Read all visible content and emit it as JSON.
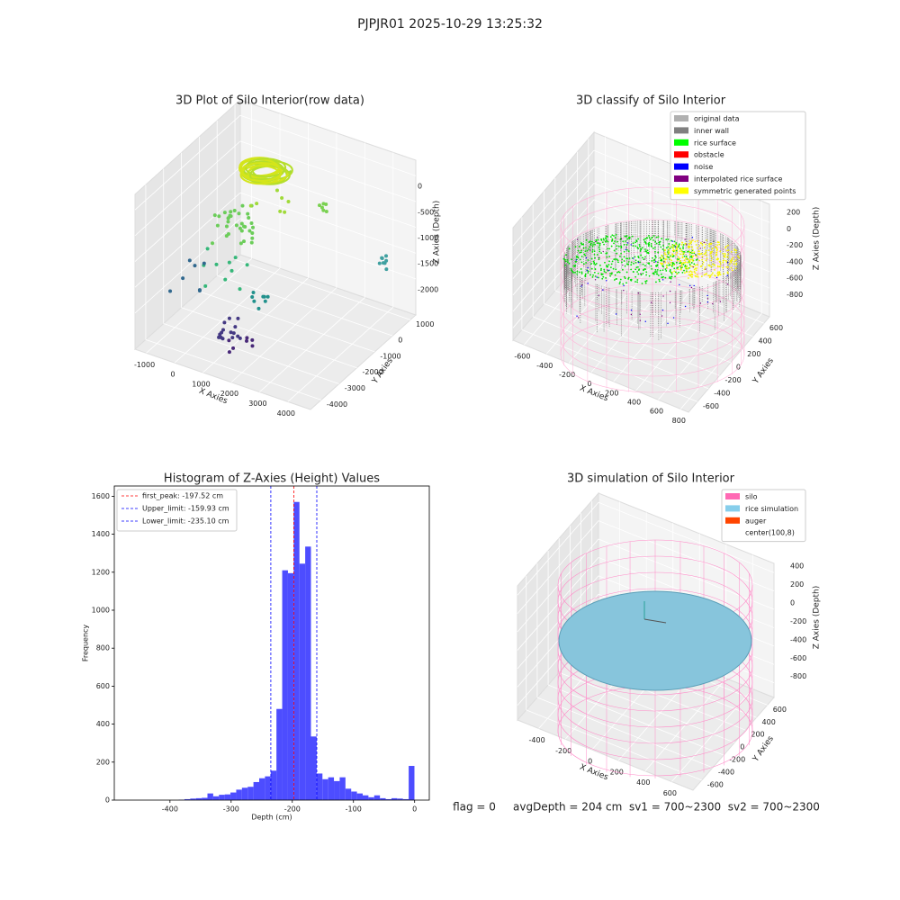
{
  "title": "PJPJR01 2025-10-29 13:25:32",
  "chart_data": [
    {
      "type": "scatter3d",
      "title": "3D Plot of Silo Interior(row data)",
      "xlabel": "X Axies",
      "ylabel": "Y Axies",
      "zlabel": "Z Axies (Depth)",
      "xlim": [
        -1400,
        4800
      ],
      "xticks": [
        -1000,
        0,
        1000,
        2000,
        3000,
        4000
      ],
      "ylim": [
        -4600,
        1300
      ],
      "yticks": [
        -4000,
        -3000,
        -2000,
        -1000,
        0,
        1000
      ],
      "zlim": [
        -2700,
        300
      ],
      "zticks": [
        -2000,
        -1500,
        -1000,
        -500,
        0
      ],
      "grid": true
    },
    {
      "type": "scatter3d",
      "title": "3D classify of Silo Interior",
      "xlabel": "X Axies",
      "ylabel": "Y Axies",
      "zlabel": "Z Axies (Depth)",
      "xlim": [
        -700,
        870
      ],
      "xticks": [
        -600,
        -400,
        -200,
        0,
        200,
        400,
        600,
        800
      ],
      "ylim": [
        -760,
        700
      ],
      "yticks": [
        -600,
        -400,
        -200,
        0,
        200,
        400,
        600
      ],
      "zlim": [
        -950,
        420
      ],
      "zticks": [
        -800,
        -600,
        -400,
        -200,
        0,
        200
      ],
      "grid": true,
      "legend": {
        "loc": "upper right",
        "items": [
          {
            "name": "original data",
            "color": "#b0b0b0"
          },
          {
            "name": "inner wall",
            "color": "#808080"
          },
          {
            "name": "rice surface",
            "color": "#00ff00"
          },
          {
            "name": "obstacle",
            "color": "#ff0000"
          },
          {
            "name": "noise",
            "color": "#0000ff"
          },
          {
            "name": "interpolated rice surface",
            "color": "#800080"
          },
          {
            "name": "symmetric generated points",
            "color": "#ffff00"
          }
        ]
      }
    },
    {
      "type": "histogram",
      "title": "Histogram of Z-Axies (Height) Values",
      "xlabel": "Depth (cm)",
      "ylabel": "Frequency",
      "color": "#4d4dff",
      "bins": [
        -385.7,
        -376.3,
        -366.9,
        -357.5,
        -348.1,
        -338.7,
        -329.3,
        -319.9,
        -310.5,
        -301.1,
        -291.7,
        -282.3,
        -272.9,
        -263.5,
        -254.1,
        -244.7,
        -235.3,
        -225.9,
        -216.5,
        -207.1,
        -197.7,
        -188.3,
        -178.9,
        -169.5,
        -160.1,
        -150.7,
        -141.3,
        -131.9,
        -122.5,
        -113.1,
        -103.7,
        -94.3,
        -84.9,
        -75.5,
        -66.1,
        -56.7,
        -47.3,
        -37.9,
        -28.5,
        -19.1,
        -9.7,
        -0.3
      ],
      "counts": [
        2,
        5,
        8,
        10,
        12,
        35,
        20,
        28,
        30,
        40,
        55,
        65,
        70,
        95,
        115,
        125,
        155,
        480,
        1210,
        1195,
        1570,
        1245,
        1335,
        335,
        140,
        110,
        120,
        100,
        120,
        60,
        45,
        35,
        25,
        15,
        25,
        10,
        5,
        10,
        8,
        5,
        180
      ],
      "xlim": [
        -491,
        24
      ],
      "xticks": [
        -400,
        -300,
        -200,
        -100,
        0
      ],
      "ylim": [
        0,
        1654
      ],
      "yticks": [
        0,
        200,
        400,
        600,
        800,
        1000,
        1200,
        1400,
        1600
      ],
      "lines": [
        {
          "name": "first_peak: -197.52 cm",
          "value": -197.52,
          "color": "#ff0000"
        },
        {
          "name": "Upper_limit: -159.93 cm",
          "value": -159.93,
          "color": "#0000ff"
        },
        {
          "name": "Lower_limit: -235.10 cm",
          "value": -235.1,
          "color": "#0000ff"
        }
      ],
      "legend": {
        "loc": "upper left"
      }
    },
    {
      "type": "surface3d",
      "title": "3D simulation of Silo Interior",
      "xlabel": "X Axies",
      "ylabel": "Y Axies",
      "zlabel": "Z Axies (Depth)",
      "xlim": [
        -560,
        760
      ],
      "xticks": [
        -400,
        -200,
        0,
        200,
        400,
        600
      ],
      "ylim": [
        -760,
        720
      ],
      "yticks": [
        -600,
        -400,
        -200,
        0,
        200,
        400,
        600
      ],
      "zlim": [
        -960,
        500
      ],
      "zticks": [
        -800,
        -600,
        -400,
        -200,
        0,
        200,
        400
      ],
      "grid": true,
      "legend": {
        "loc": "upper right",
        "items": [
          {
            "name": "silo",
            "color": "#ff69b4"
          },
          {
            "name": "rice simulation",
            "color": "#87ceeb"
          },
          {
            "name": "auger",
            "color": "#ff4500"
          },
          {
            "name": "center(100,8)",
            "color": "#ffffff"
          }
        ]
      },
      "annotation": "flag = 0     avgDepth = 204 cm  sv1 = 700~2300  sv2 = 700~2300"
    }
  ]
}
